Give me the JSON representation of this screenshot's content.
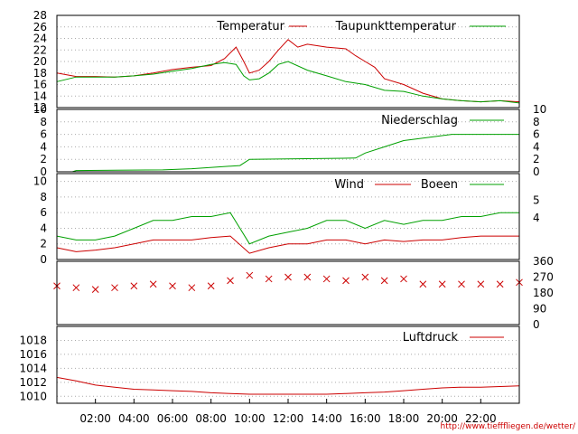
{
  "source_url": "http://www.tiefffliegen.de/wetter/",
  "colors": {
    "red": "#cc0000",
    "green": "#00a000",
    "grid": "#aaaaaa",
    "frame": "#000000"
  },
  "x_axis": {
    "ticks": [
      "02:00",
      "04:00",
      "06:00",
      "08:00",
      "10:00",
      "12:00",
      "14:00",
      "16:00",
      "18:00",
      "20:00",
      "22:00"
    ],
    "range_hours": [
      0,
      24
    ]
  },
  "chart_data": [
    {
      "type": "line",
      "ylim": [
        12,
        28
      ],
      "ytick_labels": [
        "12",
        "14",
        "16",
        "18",
        "20",
        "22",
        "24",
        "26",
        "28"
      ],
      "legend_placement": "top-right",
      "series": [
        {
          "name": "Temperatur",
          "color": "#cc0000",
          "points": [
            [
              0,
              18.0
            ],
            [
              1,
              17.4
            ],
            [
              2,
              17.4
            ],
            [
              3,
              17.3
            ],
            [
              4,
              17.5
            ],
            [
              5,
              18.0
            ],
            [
              6,
              18.6
            ],
            [
              7,
              19.0
            ],
            [
              8,
              19.3
            ],
            [
              8.7,
              20.5
            ],
            [
              9.3,
              22.5
            ],
            [
              9.7,
              20.0
            ],
            [
              10.0,
              18.0
            ],
            [
              10.5,
              18.5
            ],
            [
              11.0,
              20.0
            ],
            [
              11.5,
              22.0
            ],
            [
              12.0,
              23.8
            ],
            [
              12.5,
              22.5
            ],
            [
              13,
              23.0
            ],
            [
              14,
              22.5
            ],
            [
              15,
              22.2
            ],
            [
              15.5,
              21.0
            ],
            [
              16,
              20.0
            ],
            [
              16.5,
              19.0
            ],
            [
              17,
              17.0
            ],
            [
              18,
              16.0
            ],
            [
              19,
              14.5
            ],
            [
              20,
              13.5
            ],
            [
              21,
              13.2
            ],
            [
              22,
              13.0
            ],
            [
              23,
              13.2
            ],
            [
              24,
              13.0
            ]
          ]
        },
        {
          "name": "Taupunkttemperatur",
          "color": "#00a000",
          "points": [
            [
              0,
              16.5
            ],
            [
              1,
              17.3
            ],
            [
              2,
              17.3
            ],
            [
              3,
              17.3
            ],
            [
              4,
              17.5
            ],
            [
              5,
              17.8
            ],
            [
              6,
              18.3
            ],
            [
              7,
              18.8
            ],
            [
              8,
              19.5
            ],
            [
              8.7,
              19.8
            ],
            [
              9.3,
              19.5
            ],
            [
              9.7,
              17.5
            ],
            [
              10.0,
              16.8
            ],
            [
              10.5,
              17.0
            ],
            [
              11.0,
              18.0
            ],
            [
              11.5,
              19.5
            ],
            [
              12.0,
              20.0
            ],
            [
              13,
              18.5
            ],
            [
              14,
              17.5
            ],
            [
              15,
              16.5
            ],
            [
              16,
              16.0
            ],
            [
              17,
              15.0
            ],
            [
              18,
              14.8
            ],
            [
              19,
              14.0
            ],
            [
              20,
              13.5
            ],
            [
              21,
              13.2
            ],
            [
              22,
              13.0
            ],
            [
              23,
              13.2
            ],
            [
              24,
              12.8
            ]
          ]
        }
      ]
    },
    {
      "type": "line",
      "ylim": [
        0,
        10
      ],
      "ytick_labels": [
        "0",
        "2",
        "4",
        "6",
        "8",
        "10"
      ],
      "legend_placement": "top-right",
      "series": [
        {
          "name": "Niederschlag",
          "color": "#00a000",
          "points": [
            [
              0.8,
              0
            ],
            [
              1,
              0.2
            ],
            [
              5.5,
              0.3
            ],
            [
              7.0,
              0.5
            ],
            [
              9.5,
              1.0
            ],
            [
              10.0,
              2.0
            ],
            [
              15.5,
              2.2
            ],
            [
              16.0,
              3.0
            ],
            [
              17.0,
              4.0
            ],
            [
              18.0,
              5.0
            ],
            [
              20.5,
              6.0
            ],
            [
              24,
              6.0
            ]
          ]
        }
      ]
    },
    {
      "type": "line",
      "ylim": [
        0,
        11
      ],
      "ytick_labels": [
        "0",
        "2",
        "4",
        "6",
        "8",
        "10"
      ],
      "right_labels": [
        "4",
        "5"
      ],
      "legend_placement": "top-right",
      "series": [
        {
          "name": "Wind",
          "color": "#cc0000",
          "points": [
            [
              0,
              1.5
            ],
            [
              1,
              1.0
            ],
            [
              2,
              1.2
            ],
            [
              3,
              1.5
            ],
            [
              4,
              2.0
            ],
            [
              5,
              2.5
            ],
            [
              6,
              2.5
            ],
            [
              7,
              2.5
            ],
            [
              8,
              2.8
            ],
            [
              9,
              3.0
            ],
            [
              10,
              0.8
            ],
            [
              11,
              1.5
            ],
            [
              12,
              2.0
            ],
            [
              13,
              2.0
            ],
            [
              14,
              2.5
            ],
            [
              15,
              2.5
            ],
            [
              16,
              2.0
            ],
            [
              17,
              2.5
            ],
            [
              18,
              2.3
            ],
            [
              19,
              2.5
            ],
            [
              20,
              2.5
            ],
            [
              21,
              2.8
            ],
            [
              22,
              3.0
            ],
            [
              23,
              3.0
            ],
            [
              24,
              3.0
            ]
          ]
        },
        {
          "name": "Boeen",
          "color": "#00a000",
          "points": [
            [
              0,
              3.0
            ],
            [
              1,
              2.5
            ],
            [
              2,
              2.5
            ],
            [
              3,
              3.0
            ],
            [
              4,
              4.0
            ],
            [
              5,
              5.0
            ],
            [
              6,
              5.0
            ],
            [
              7,
              5.5
            ],
            [
              8,
              5.5
            ],
            [
              9,
              6.0
            ],
            [
              10,
              2.0
            ],
            [
              11,
              3.0
            ],
            [
              12,
              3.5
            ],
            [
              13,
              4.0
            ],
            [
              14,
              5.0
            ],
            [
              15,
              5.0
            ],
            [
              16,
              4.0
            ],
            [
              17,
              5.0
            ],
            [
              18,
              4.5
            ],
            [
              19,
              5.0
            ],
            [
              20,
              5.0
            ],
            [
              21,
              5.5
            ],
            [
              22,
              5.5
            ],
            [
              23,
              6.0
            ],
            [
              24,
              6.0
            ]
          ]
        }
      ]
    },
    {
      "type": "scatter",
      "ylim": [
        0,
        360
      ],
      "right_labels": [
        "0",
        "90",
        "180",
        "270",
        "360"
      ],
      "series": [
        {
          "name": "",
          "color": "#cc0000",
          "marker": "x",
          "points": [
            [
              0,
              220
            ],
            [
              1,
              210
            ],
            [
              2,
              200
            ],
            [
              3,
              210
            ],
            [
              4,
              220
            ],
            [
              5,
              230
            ],
            [
              6,
              220
            ],
            [
              7,
              210
            ],
            [
              8,
              220
            ],
            [
              9,
              250
            ],
            [
              10,
              280
            ],
            [
              11,
              260
            ],
            [
              12,
              270
            ],
            [
              13,
              270
            ],
            [
              14,
              260
            ],
            [
              15,
              250
            ],
            [
              16,
              270
            ],
            [
              17,
              250
            ],
            [
              18,
              260
            ],
            [
              19,
              230
            ],
            [
              20,
              230
            ],
            [
              21,
              230
            ],
            [
              22,
              230
            ],
            [
              23,
              230
            ],
            [
              24,
              240
            ]
          ]
        }
      ]
    },
    {
      "type": "line",
      "ylim": [
        1009,
        1020
      ],
      "ytick_labels": [
        "1010",
        "1012",
        "1014",
        "1016",
        "1018"
      ],
      "legend_placement": "top-right",
      "series": [
        {
          "name": "Luftdruck",
          "color": "#cc0000",
          "points": [
            [
              0,
              1012.7
            ],
            [
              1,
              1012.2
            ],
            [
              2,
              1011.6
            ],
            [
              3,
              1011.3
            ],
            [
              4,
              1011.0
            ],
            [
              5,
              1010.9
            ],
            [
              6,
              1010.8
            ],
            [
              7,
              1010.7
            ],
            [
              8,
              1010.5
            ],
            [
              9,
              1010.4
            ],
            [
              10,
              1010.3
            ],
            [
              11,
              1010.3
            ],
            [
              12,
              1010.3
            ],
            [
              13,
              1010.3
            ],
            [
              14,
              1010.3
            ],
            [
              15,
              1010.4
            ],
            [
              16,
              1010.5
            ],
            [
              17,
              1010.6
            ],
            [
              18,
              1010.8
            ],
            [
              19,
              1011.0
            ],
            [
              20,
              1011.2
            ],
            [
              21,
              1011.3
            ],
            [
              22,
              1011.3
            ],
            [
              23,
              1011.4
            ],
            [
              24,
              1011.5
            ]
          ]
        }
      ]
    }
  ]
}
